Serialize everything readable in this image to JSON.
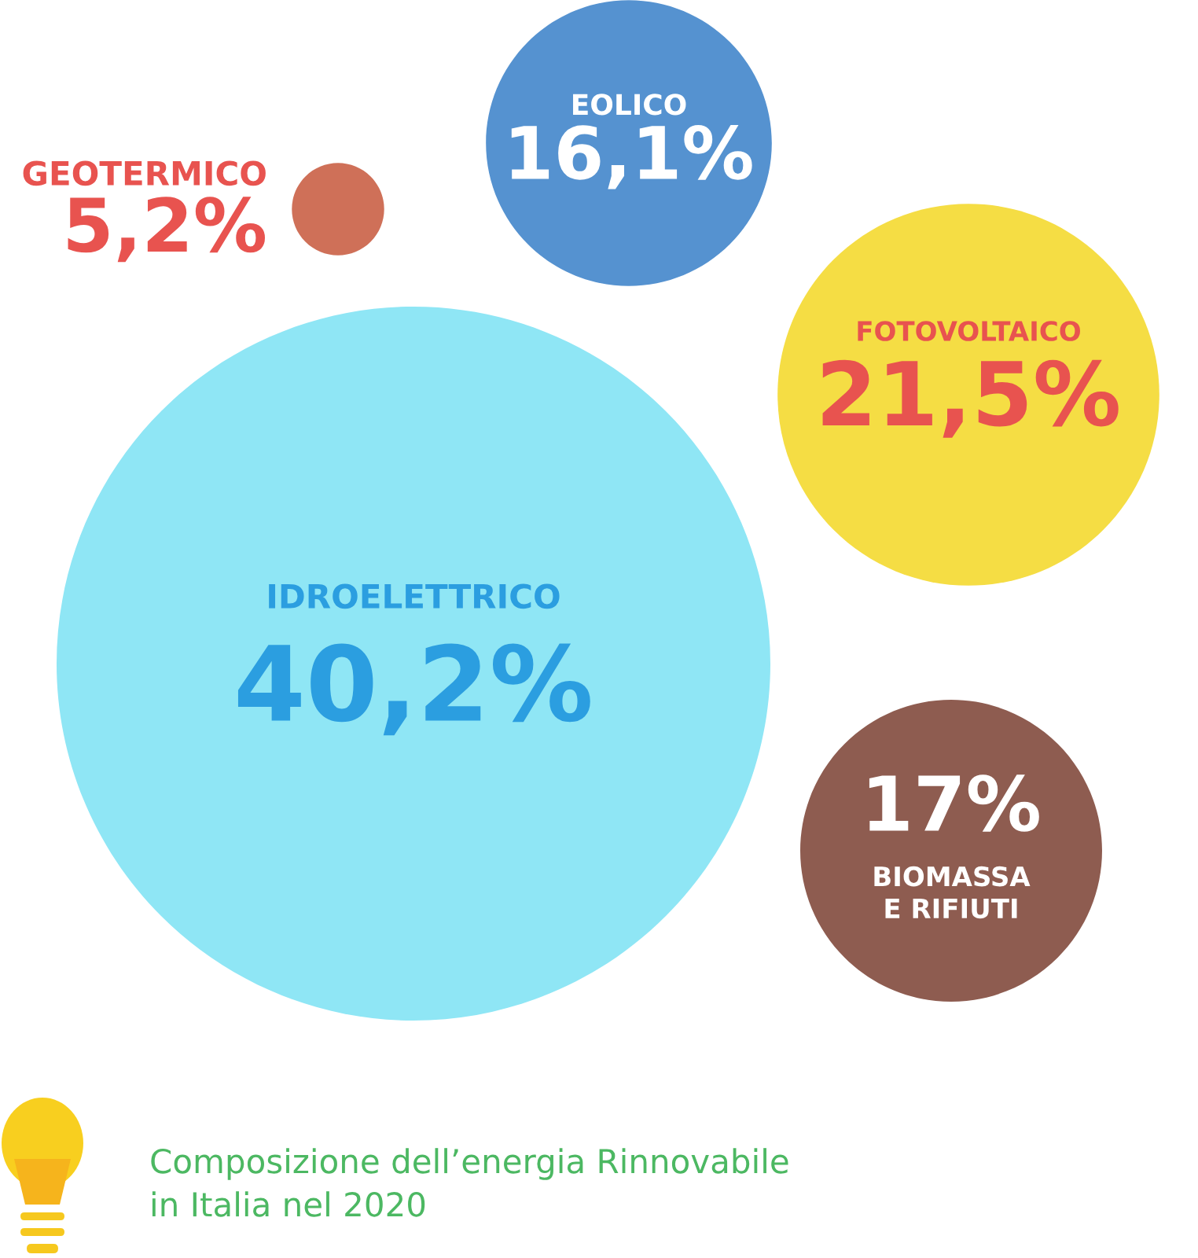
{
  "chart_data": {
    "type": "other",
    "title": "Composizione dell’energia Rinnovabile\nin Italia nel 2020",
    "categories": [
      "GEOTERMICO",
      "EOLICO",
      "FOTOVOLTAICO",
      "IDROELETTRICO",
      "BIOMASSA\nE RIFIUTI"
    ],
    "values": [
      5.2,
      16.1,
      21.5,
      40.2,
      17
    ],
    "value_labels": [
      "5,2%",
      "16,1%",
      "21,5%",
      "40,2%",
      "17%"
    ],
    "colors": [
      "#cf7058",
      "#5592d0",
      "#f5dd44",
      "#8fe6f5",
      "#8e5c50"
    ]
  }
}
